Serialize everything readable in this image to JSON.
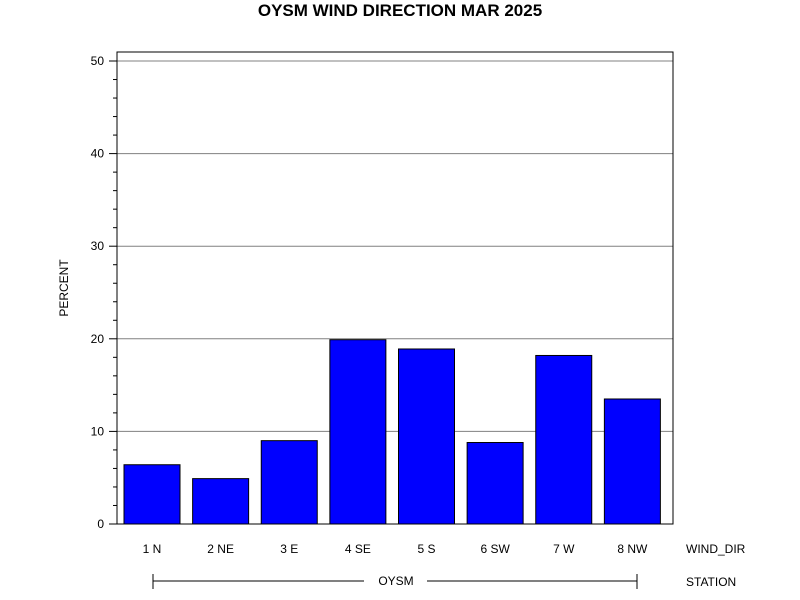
{
  "chart_data": {
    "type": "bar",
    "title": "OYSM WIND DIRECTION MAR 2025",
    "ylabel": "PERCENT",
    "ylim": [
      0,
      50
    ],
    "yticks": [
      0,
      10,
      20,
      30,
      40,
      50
    ],
    "grid": true,
    "categories": [
      "1 N",
      "2 NE",
      "3 E",
      "4 SE",
      "5 S",
      "6 SW",
      "7 W",
      "8 NW"
    ],
    "values": [
      6.4,
      4.9,
      9.0,
      19.9,
      18.9,
      8.8,
      18.2,
      13.5
    ],
    "bar_color": "#0000ff",
    "x_axis_name": "WIND_DIR",
    "group_label": "OYSM",
    "group_axis_name": "STATION"
  }
}
